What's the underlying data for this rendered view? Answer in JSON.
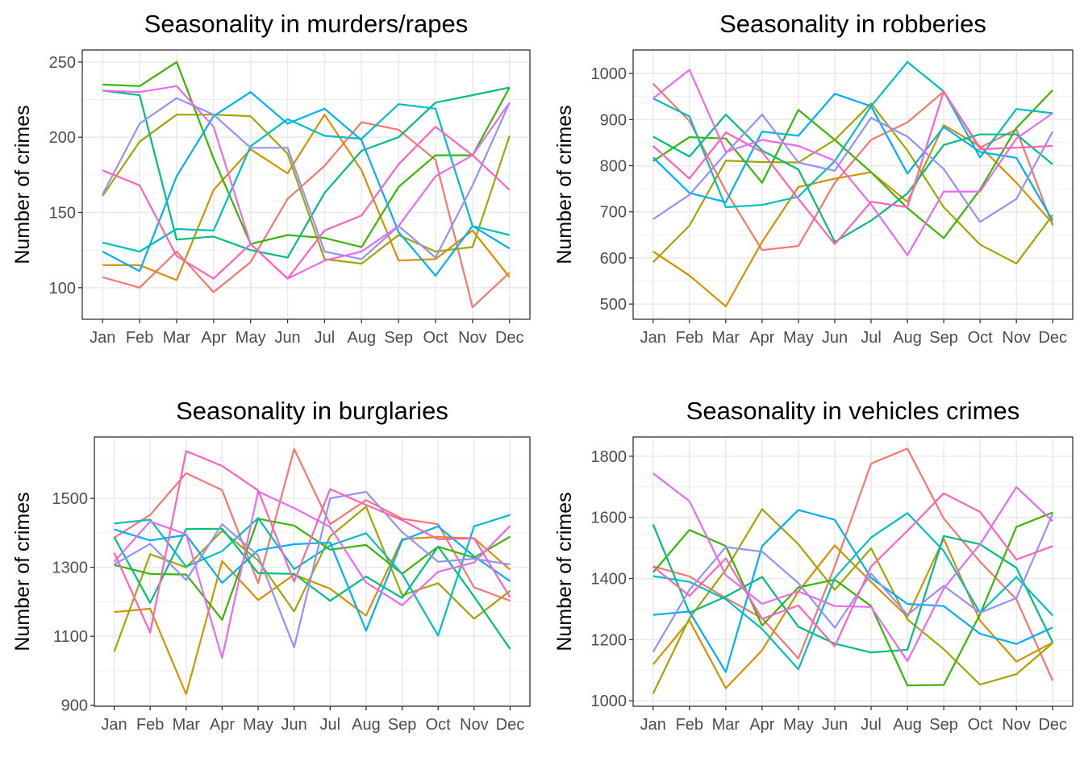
{
  "colors": [
    "#F8766D",
    "#D89000",
    "#A3A500",
    "#39B600",
    "#00BF7D",
    "#00BFC4",
    "#00B0F6",
    "#9590FF",
    "#E76BF3",
    "#FF62BC"
  ],
  "chart_data": [
    {
      "type": "line",
      "title": "Seasonality in murders/rapes",
      "xlabel": "",
      "ylabel": "Number of crimes",
      "categories": [
        "Jan",
        "Feb",
        "Mar",
        "Apr",
        "May",
        "Jun",
        "Jul",
        "Aug",
        "Sep",
        "Oct",
        "Nov",
        "Dec"
      ],
      "ylim": [
        79,
        258
      ],
      "yticks": [
        100,
        150,
        200,
        250
      ],
      "grid": true,
      "legend": "none",
      "series": [
        {
          "color": "#F8766D",
          "values": [
            107,
            100,
            124,
            97,
            117,
            159,
            181,
            210,
            205,
            185,
            87,
            110
          ]
        },
        {
          "color": "#D89000",
          "values": [
            115,
            115,
            105,
            165,
            192,
            176,
            215,
            178,
            118,
            119,
            138,
            107
          ]
        },
        {
          "color": "#A3A500",
          "values": [
            161,
            197,
            215,
            215,
            214,
            189,
            119,
            116,
            135,
            124,
            127,
            201
          ]
        },
        {
          "color": "#39B600",
          "values": [
            235,
            234,
            250,
            186,
            129,
            135,
            133,
            127,
            167,
            188,
            188,
            233
          ]
        },
        {
          "color": "#00BF7D",
          "values": [
            231,
            228,
            132,
            134,
            125,
            120,
            163,
            191,
            200,
            223,
            228,
            233
          ]
        },
        {
          "color": "#00BFC4",
          "values": [
            130,
            124,
            139,
            138,
            194,
            212,
            201,
            199,
            222,
            219,
            141,
            135
          ]
        },
        {
          "color": "#00B0F6",
          "values": [
            124,
            111,
            174,
            214,
            230,
            209,
            219,
            198,
            137,
            108,
            141,
            126
          ]
        },
        {
          "color": "#9590FF",
          "values": [
            162,
            209,
            226,
            215,
            193,
            193,
            124,
            119,
            141,
            120,
            168,
            223
          ]
        },
        {
          "color": "#E76BF3",
          "values": [
            231,
            230,
            234,
            207,
            129,
            106,
            118,
            124,
            141,
            174,
            188,
            223
          ]
        },
        {
          "color": "#FF62BC",
          "values": [
            178,
            168,
            121,
            106,
            129,
            106,
            138,
            148,
            182,
            207,
            188,
            165
          ]
        }
      ]
    },
    {
      "type": "line",
      "title": "Seasonality in robberies",
      "xlabel": "",
      "ylabel": "Number of crimes",
      "categories": [
        "Jan",
        "Feb",
        "Mar",
        "Apr",
        "May",
        "Jun",
        "Jul",
        "Aug",
        "Sep",
        "Oct",
        "Nov",
        "Dec"
      ],
      "ylim": [
        467,
        1051
      ],
      "yticks": [
        500,
        600,
        700,
        800,
        900,
        1000
      ],
      "grid": true,
      "legend": "none",
      "series": [
        {
          "color": "#F8766D",
          "values": [
            978,
            897,
            745,
            617,
            626,
            763,
            856,
            894,
            961,
            839,
            879,
            670
          ]
        },
        {
          "color": "#D89000",
          "values": [
            614,
            562,
            495,
            635,
            754,
            772,
            786,
            722,
            888,
            842,
            763,
            675
          ]
        },
        {
          "color": "#A3A500",
          "values": [
            591,
            670,
            811,
            808,
            807,
            856,
            935,
            833,
            710,
            629,
            588,
            693
          ]
        },
        {
          "color": "#39B600",
          "values": [
            810,
            862,
            859,
            763,
            921,
            856,
            786,
            708,
            643,
            748,
            882,
            964
          ]
        },
        {
          "color": "#00BF7D",
          "values": [
            863,
            820,
            911,
            833,
            792,
            635,
            681,
            740,
            845,
            868,
            868,
            803
          ]
        },
        {
          "color": "#00BFC4",
          "values": [
            946,
            907,
            710,
            715,
            733,
            810,
            929,
            1025,
            961,
            818,
            923,
            914
          ]
        },
        {
          "color": "#00B0F6",
          "values": [
            818,
            741,
            721,
            874,
            865,
            956,
            929,
            783,
            884,
            830,
            817,
            681
          ]
        },
        {
          "color": "#9590FF",
          "values": [
            684,
            737,
            827,
            911,
            807,
            789,
            904,
            863,
            793,
            678,
            728,
            874
          ]
        },
        {
          "color": "#E76BF3",
          "values": [
            946,
            1008,
            830,
            856,
            843,
            811,
            716,
            606,
            744,
            744,
            859,
            914
          ]
        },
        {
          "color": "#FF62BC",
          "values": [
            843,
            772,
            872,
            830,
            728,
            630,
            722,
            710,
            961,
            836,
            839,
            843
          ]
        }
      ]
    },
    {
      "type": "line",
      "title": "Seasonality in burglaries",
      "xlabel": "",
      "ylabel": "Number of crimes",
      "categories": [
        "Jan",
        "Feb",
        "Mar",
        "Apr",
        "May",
        "Jun",
        "Jul",
        "Aug",
        "Sep",
        "Oct",
        "Nov",
        "Dec"
      ],
      "ylim": [
        897,
        1678
      ],
      "yticks": [
        900,
        1100,
        1300,
        1500
      ],
      "grid": true,
      "legend": "none",
      "series": [
        {
          "color": "#F8766D",
          "values": [
            1386,
            1452,
            1573,
            1524,
            1254,
            1643,
            1425,
            1495,
            1441,
            1425,
            1242,
            1203
          ]
        },
        {
          "color": "#D89000",
          "values": [
            1170,
            1180,
            932,
            1318,
            1205,
            1279,
            1238,
            1160,
            1382,
            1388,
            1384,
            1293
          ]
        },
        {
          "color": "#A3A500",
          "values": [
            1055,
            1338,
            1300,
            1406,
            1320,
            1172,
            1390,
            1476,
            1219,
            1254,
            1151,
            1232
          ]
        },
        {
          "color": "#39B600",
          "values": [
            1307,
            1281,
            1279,
            1148,
            1441,
            1421,
            1351,
            1365,
            1281,
            1360,
            1328,
            1389
          ]
        },
        {
          "color": "#00BF7D",
          "values": [
            1388,
            1197,
            1411,
            1412,
            1283,
            1281,
            1203,
            1273,
            1211,
            1360,
            1215,
            1063
          ]
        },
        {
          "color": "#00BFC4",
          "values": [
            1427,
            1438,
            1302,
            1347,
            1443,
            1295,
            1363,
            1399,
            1281,
            1102,
            1419,
            1452
          ]
        },
        {
          "color": "#00B0F6",
          "values": [
            1410,
            1378,
            1394,
            1255,
            1350,
            1367,
            1372,
            1116,
            1378,
            1419,
            1332,
            1260
          ]
        },
        {
          "color": "#9590FF",
          "values": [
            1308,
            1368,
            1263,
            1425,
            1334,
            1068,
            1500,
            1519,
            1402,
            1316,
            1325,
            1308
          ]
        },
        {
          "color": "#E76BF3",
          "values": [
            1316,
            1433,
            1396,
            1037,
            1520,
            1472,
            1417,
            1256,
            1190,
            1287,
            1314,
            1420
          ]
        },
        {
          "color": "#FF62BC",
          "values": [
            1343,
            1111,
            1637,
            1594,
            1523,
            1258,
            1527,
            1481,
            1437,
            1381,
            1384,
            1213
          ]
        }
      ]
    },
    {
      "type": "line",
      "title": "Seasonality in vehicles crimes",
      "xlabel": "",
      "ylabel": "Number of crimes",
      "categories": [
        "Jan",
        "Feb",
        "Mar",
        "Apr",
        "May",
        "Jun",
        "Jul",
        "Aug",
        "Sep",
        "Oct",
        "Nov",
        "Dec"
      ],
      "ylim": [
        982,
        1863
      ],
      "yticks": [
        1000,
        1200,
        1400,
        1600,
        1800
      ],
      "grid": true,
      "legend": "none",
      "series": [
        {
          "color": "#F8766D",
          "values": [
            1440,
            1407,
            1336,
            1270,
            1138,
            1440,
            1776,
            1825,
            1596,
            1455,
            1332,
            1066
          ]
        },
        {
          "color": "#D89000",
          "values": [
            1119,
            1263,
            1041,
            1165,
            1358,
            1508,
            1389,
            1275,
            1530,
            1262,
            1128,
            1191
          ]
        },
        {
          "color": "#A3A500",
          "values": [
            1024,
            1270,
            1429,
            1627,
            1512,
            1363,
            1499,
            1266,
            1169,
            1053,
            1087,
            1189
          ]
        },
        {
          "color": "#39B600",
          "values": [
            1420,
            1559,
            1506,
            1246,
            1371,
            1396,
            1310,
            1050,
            1052,
            1283,
            1569,
            1616
          ]
        },
        {
          "color": "#00BF7D",
          "values": [
            1577,
            1288,
            1341,
            1405,
            1242,
            1187,
            1158,
            1167,
            1539,
            1512,
            1435,
            1191
          ]
        },
        {
          "color": "#00BFC4",
          "values": [
            1408,
            1389,
            1332,
            1235,
            1103,
            1402,
            1534,
            1614,
            1490,
            1288,
            1405,
            1279
          ]
        },
        {
          "color": "#00B0F6",
          "values": [
            1281,
            1292,
            1094,
            1506,
            1624,
            1592,
            1402,
            1317,
            1310,
            1219,
            1186,
            1240
          ]
        },
        {
          "color": "#9590FF",
          "values": [
            1160,
            1363,
            1503,
            1488,
            1385,
            1239,
            1416,
            1281,
            1376,
            1288,
            1336,
            1612
          ]
        },
        {
          "color": "#E76BF3",
          "values": [
            1744,
            1653,
            1411,
            1317,
            1358,
            1310,
            1307,
            1130,
            1367,
            1512,
            1699,
            1587
          ]
        },
        {
          "color": "#FF62BC",
          "values": [
            1439,
            1343,
            1466,
            1268,
            1312,
            1178,
            1439,
            1556,
            1679,
            1618,
            1462,
            1506
          ]
        }
      ]
    }
  ]
}
